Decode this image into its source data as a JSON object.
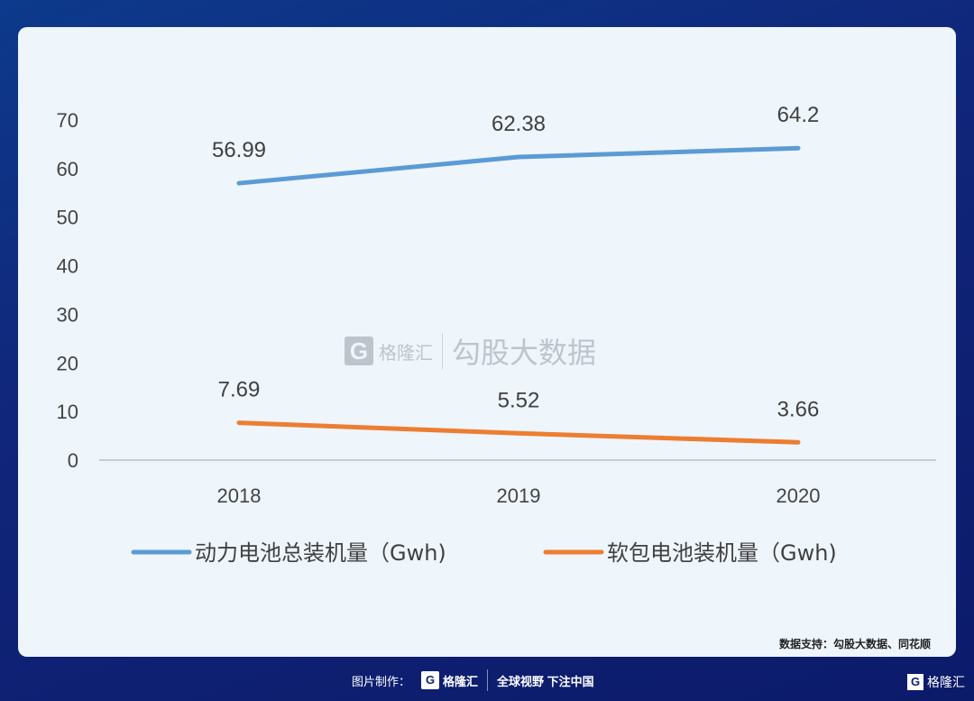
{
  "chart_data": {
    "type": "line",
    "categories": [
      "2018",
      "2019",
      "2020"
    ],
    "series": [
      {
        "name": "动力电池总装机量（Gwh)",
        "values": [
          56.99,
          62.38,
          64.2
        ],
        "labels": [
          "56.99",
          "62.38",
          "64.2"
        ],
        "color": "#5b9bd5"
      },
      {
        "name": "软包电池装机量（Gwh)",
        "values": [
          7.69,
          5.52,
          3.66
        ],
        "labels": [
          "7.69",
          "5.52",
          "3.66"
        ],
        "color": "#ed7d31"
      }
    ],
    "yticks": [
      "0",
      "10",
      "20",
      "30",
      "40",
      "50",
      "60",
      "70"
    ],
    "ylim": [
      0,
      70
    ],
    "legend": "bottom"
  },
  "watermark": {
    "logo": "G",
    "brand": "格隆汇",
    "text": "勾股大数据"
  },
  "source": "数据支持：勾股大数据、同花顺",
  "footer": {
    "label": "图片制作：",
    "logo": "G",
    "brand": "格隆汇",
    "slogan": "全球视野 下注中国"
  }
}
